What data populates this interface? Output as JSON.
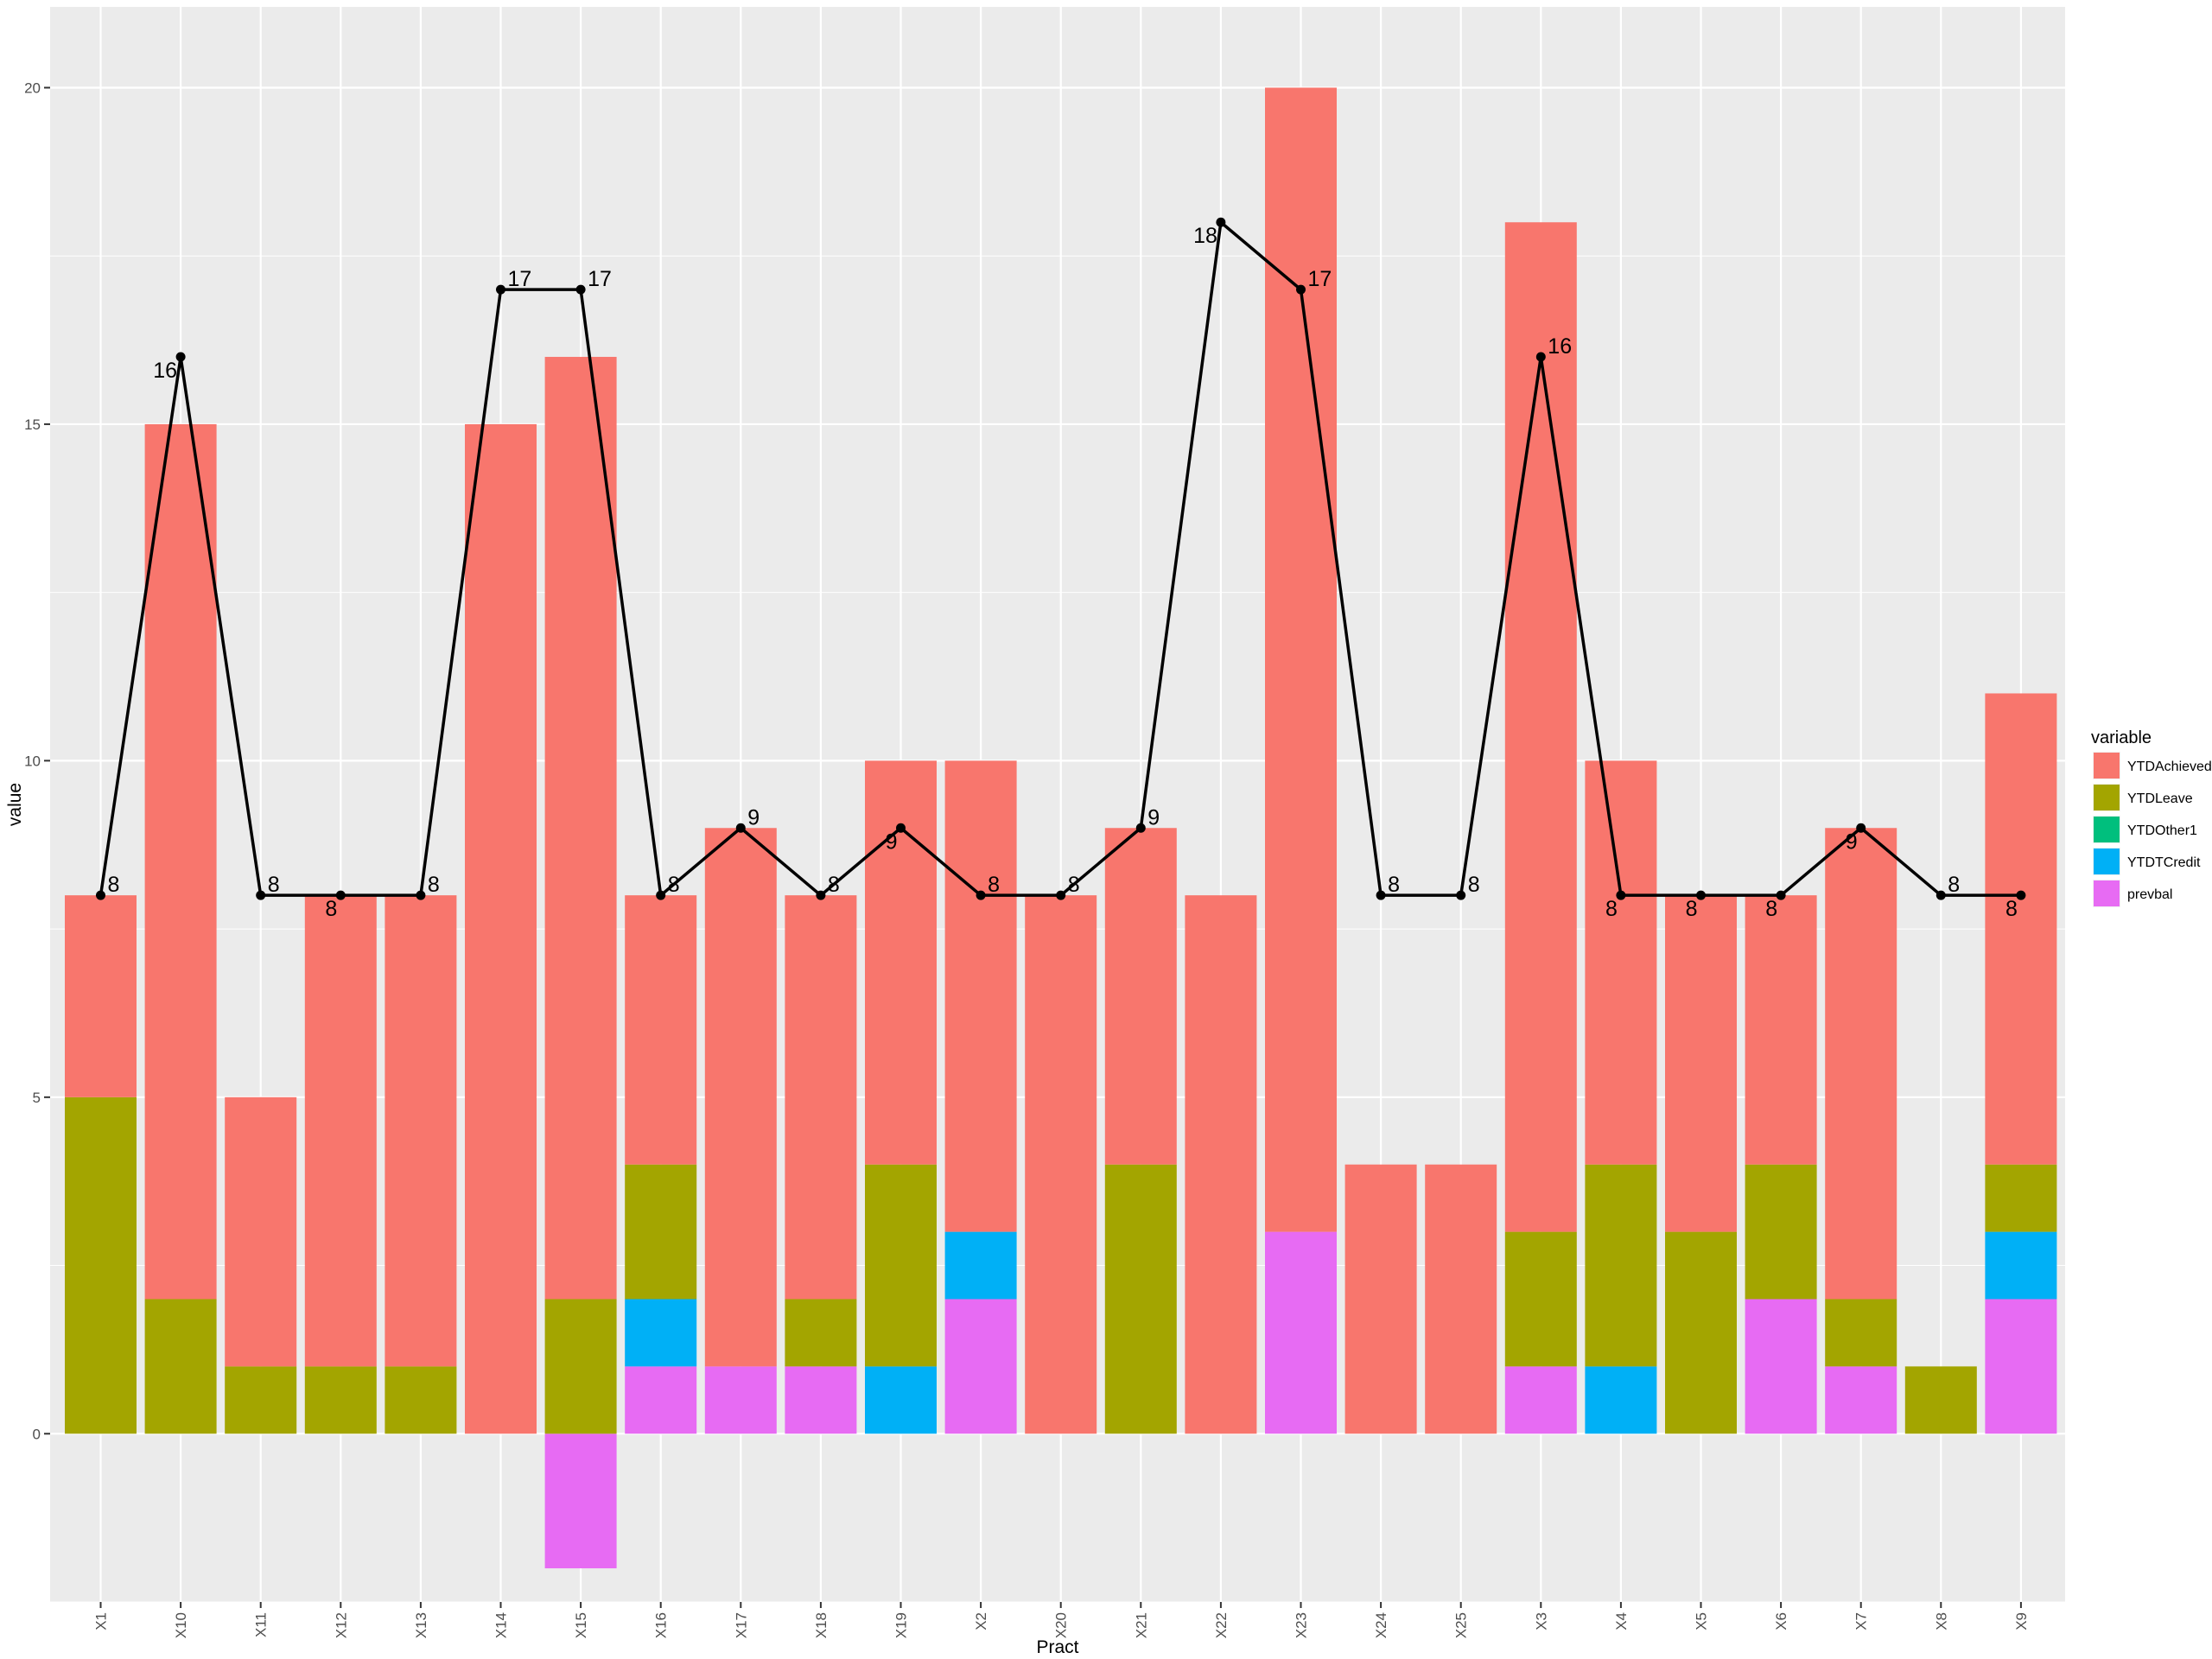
{
  "chart_data": {
    "type": "bar",
    "stacked": true,
    "categories": [
      "X1",
      "X10",
      "X11",
      "X12",
      "X13",
      "X14",
      "X15",
      "X16",
      "X17",
      "X18",
      "X19",
      "X2",
      "X20",
      "X21",
      "X22",
      "X23",
      "X24",
      "X25",
      "X3",
      "X4",
      "X5",
      "X6",
      "X7",
      "X8",
      "X9"
    ],
    "xlabel": "Pract",
    "ylabel": "value",
    "ylim": [
      -2.5,
      21.2
    ],
    "yticks": [
      0,
      5,
      10,
      15,
      20
    ],
    "grid": true,
    "legend": {
      "title": "variable",
      "position": "right",
      "entries": [
        "YTDAchieved",
        "YTDLeave",
        "YTDOther1",
        "YTDTCredit",
        "prevbal"
      ]
    },
    "colors": {
      "YTDAchieved": "#F8766D",
      "YTDLeave": "#A3A500",
      "YTDOther1": "#00BF7D",
      "YTDTCredit": "#00B0F6",
      "prevbal": "#E76BF3",
      "panel": "#EBEBEB",
      "grid": "#FFFFFF",
      "line": "#000000"
    },
    "series": [
      {
        "name": "YTDAchieved",
        "values": [
          3,
          13,
          4,
          7,
          7,
          15,
          14,
          4,
          8,
          6,
          6,
          7,
          8,
          5,
          8,
          17,
          4,
          4,
          15,
          6,
          5,
          4,
          7,
          0,
          7
        ]
      },
      {
        "name": "YTDLeave",
        "values": [
          5,
          2,
          1,
          1,
          1,
          0,
          2,
          2,
          0,
          1,
          3,
          0,
          0,
          4,
          0,
          0,
          0,
          0,
          2,
          3,
          3,
          2,
          1,
          1,
          1
        ]
      },
      {
        "name": "YTDOther1",
        "values": [
          0,
          0,
          0,
          0,
          0,
          0,
          0,
          0,
          0,
          0,
          0,
          0,
          0,
          0,
          0,
          0,
          0,
          0,
          0,
          0,
          0,
          0,
          0,
          0,
          0
        ]
      },
      {
        "name": "YTDTCredit",
        "values": [
          0,
          0,
          0,
          0,
          0,
          0,
          0,
          1,
          0,
          0,
          1,
          1,
          0,
          0,
          0,
          0,
          0,
          0,
          0,
          1,
          0,
          0,
          0,
          0,
          1
        ]
      },
      {
        "name": "prevbal",
        "values": [
          0,
          0,
          0,
          0,
          0,
          0,
          -2,
          1,
          1,
          1,
          0,
          2,
          0,
          0,
          0,
          3,
          0,
          0,
          1,
          0,
          0,
          2,
          1,
          0,
          2
        ]
      }
    ],
    "line": {
      "values": [
        8,
        16,
        8,
        8,
        8,
        17,
        17,
        8,
        9,
        8,
        9,
        8,
        8,
        9,
        18,
        17,
        8,
        8,
        16,
        8,
        8,
        8,
        9,
        8,
        8
      ],
      "labels": [
        "8",
        "16",
        "8",
        "8",
        "8",
        "17",
        "17",
        "8",
        "9",
        "8",
        "9",
        "8",
        "8",
        "9",
        "18",
        "17",
        "8",
        "8",
        "16",
        "8",
        "8",
        "8",
        "9",
        "8",
        "8"
      ],
      "label_side": [
        "r",
        "l",
        "r",
        "l",
        "r",
        "r",
        "r",
        "r",
        "r",
        "r",
        "l",
        "r",
        "r",
        "r",
        "l",
        "r",
        "r",
        "r",
        "r",
        "l",
        "l",
        "l",
        "l",
        "r",
        "l"
      ]
    }
  }
}
